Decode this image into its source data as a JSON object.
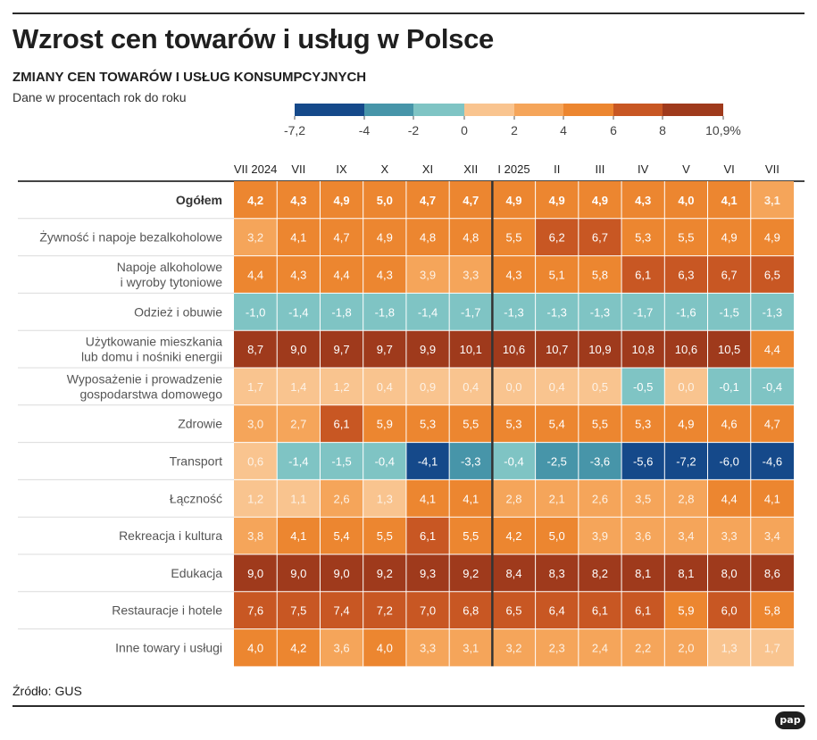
{
  "header": {
    "title": "Wzrost cen towarów i usług w Polsce",
    "subtitle": "ZMIANY CEN TOWARÓW I USŁUG KONSUMPCYJNYCH",
    "units": "Dane w procentach rok do roku"
  },
  "footer": {
    "source": "Źródło: GUS",
    "logo": "pap"
  },
  "chart_data": {
    "type": "heatmap",
    "title": "Wzrost cen towarów i usług w Polsce",
    "subtitle": "ZMIANY CEN TOWARÓW I USŁUG KONSUMPCYJNYCH",
    "unit_note": "Dane w procentach rok do roku",
    "x_labels": [
      "VII 2024",
      "VII",
      "IX",
      "X",
      "XI",
      "XII",
      "I 2025",
      "II",
      "III",
      "IV",
      "V",
      "VI",
      "VII"
    ],
    "y_labels": [
      [
        "Ogółem"
      ],
      [
        "Żywność i napoje bezalkoholowe"
      ],
      [
        "Napoje alkoholowe",
        "i wyroby tytoniowe"
      ],
      [
        "Odzież i obuwie"
      ],
      [
        "Użytkowanie mieszkania",
        "lub domu i nośniki energii"
      ],
      [
        "Wyposażenie i prowadzenie",
        "gospodarstwa domowego"
      ],
      [
        "Zdrowie"
      ],
      [
        "Transport"
      ],
      [
        "Łączność"
      ],
      [
        "Rekreacja i kultura"
      ],
      [
        "Edukacja"
      ],
      [
        "Restauracje i hotele"
      ],
      [
        "Inne towary i usługi"
      ]
    ],
    "values": [
      [
        4.2,
        4.3,
        4.9,
        5.0,
        4.7,
        4.7,
        4.9,
        4.9,
        4.9,
        4.3,
        4.0,
        4.1,
        3.1
      ],
      [
        3.2,
        4.1,
        4.7,
        4.9,
        4.8,
        4.8,
        5.5,
        6.2,
        6.7,
        5.3,
        5.5,
        4.9,
        4.9
      ],
      [
        4.4,
        4.3,
        4.4,
        4.3,
        3.9,
        3.3,
        4.3,
        5.1,
        5.8,
        6.1,
        6.3,
        6.7,
        6.5
      ],
      [
        -1.0,
        -1.4,
        -1.8,
        -1.8,
        -1.4,
        -1.7,
        -1.3,
        -1.3,
        -1.3,
        -1.7,
        -1.6,
        -1.5,
        -1.3
      ],
      [
        8.7,
        9.0,
        9.7,
        9.7,
        9.9,
        10.1,
        10.6,
        10.7,
        10.9,
        10.8,
        10.6,
        10.5,
        4.4
      ],
      [
        1.7,
        1.4,
        1.2,
        0.4,
        0.9,
        0.4,
        0.0,
        0.4,
        0.5,
        -0.5,
        0.0,
        -0.1,
        -0.4
      ],
      [
        3.0,
        2.7,
        6.1,
        5.9,
        5.3,
        5.5,
        5.3,
        5.4,
        5.5,
        5.3,
        4.9,
        4.6,
        4.7
      ],
      [
        0.6,
        -1.4,
        -1.5,
        -0.4,
        -4.1,
        -3.3,
        -0.4,
        -2.5,
        -3.6,
        -5.6,
        -7.2,
        -6.0,
        -4.6
      ],
      [
        1.2,
        1.1,
        2.6,
        1.3,
        4.1,
        4.1,
        2.8,
        2.1,
        2.6,
        3.5,
        2.8,
        4.4,
        4.1
      ],
      [
        3.8,
        4.1,
        5.4,
        5.5,
        6.1,
        5.5,
        4.2,
        5.0,
        3.9,
        3.6,
        3.4,
        3.3,
        3.4
      ],
      [
        9.0,
        9.0,
        9.0,
        9.2,
        9.3,
        9.2,
        8.4,
        8.3,
        8.2,
        8.1,
        8.1,
        8.0,
        8.6
      ],
      [
        7.6,
        7.5,
        7.4,
        7.2,
        7.0,
        6.8,
        6.5,
        6.4,
        6.1,
        6.1,
        5.9,
        6.0,
        5.8
      ],
      [
        4.0,
        4.2,
        3.6,
        4.0,
        3.3,
        3.1,
        3.2,
        2.3,
        2.4,
        2.2,
        2.0,
        1.3,
        1.7
      ]
    ],
    "color_scale": {
      "breaks": [
        -7.2,
        -4,
        -2,
        0,
        2,
        4,
        6,
        8,
        10.9
      ],
      "tick_labels": [
        "-7,2",
        "-4",
        "-2",
        "0",
        "2",
        "4",
        "6",
        "8",
        "10,9%"
      ],
      "colors": [
        "#15498a",
        "#4795a9",
        "#7fc4c4",
        "#f9c48f",
        "#f5a55a",
        "#ec8630",
        "#c85723",
        "#9f3a1c"
      ]
    },
    "year_divider_after_column": 6,
    "bold_first_row": true
  }
}
